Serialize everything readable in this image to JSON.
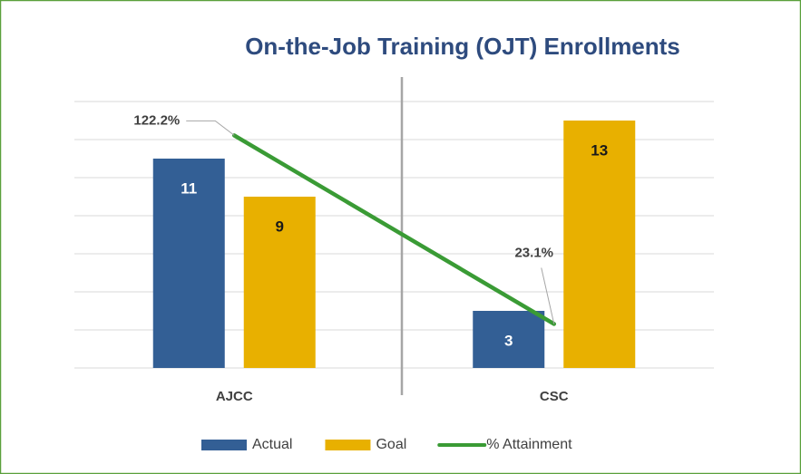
{
  "chart_data": {
    "type": "bar",
    "title": "On-the-Job Training (OJT) Enrollments",
    "categories": [
      "AJCC",
      "CSC"
    ],
    "series": [
      {
        "name": "Actual",
        "color": "#335f95",
        "values": [
          11,
          3
        ]
      },
      {
        "name": "Goal",
        "color": "#e8b000",
        "values": [
          9,
          13
        ]
      },
      {
        "name": "% Attainment",
        "type": "line",
        "axis": "y2",
        "color": "#3a9b35",
        "values": [
          122.2,
          23.1
        ],
        "value_labels": [
          "122.2%",
          "23.1%"
        ]
      }
    ],
    "ylim": [
      0,
      14
    ],
    "yticks": [
      0,
      2,
      4,
      6,
      8,
      10,
      12,
      14
    ],
    "y2lim": [
      0,
      140
    ],
    "grid": true,
    "tick_labels": false,
    "legend": "bottom"
  }
}
